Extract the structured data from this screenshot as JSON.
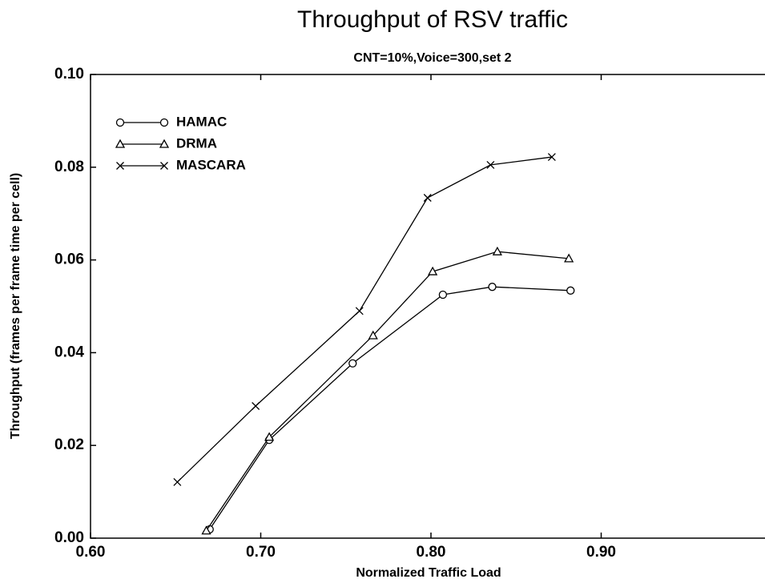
{
  "chart_data": {
    "type": "line",
    "title": "Throughput of RSV traffic",
    "subtitle": "CNT=10%,Voice=300,set 2",
    "x_label": "Normalized Traffic Load",
    "y_label": "Throughput (frames per frame time per cell)",
    "xlim": [
      0.6,
      1.0
    ],
    "ylim": [
      0.0,
      0.1
    ],
    "xticks": [
      {
        "value": 0.6,
        "label": "0.60"
      },
      {
        "value": 0.7,
        "label": "0.70"
      },
      {
        "value": 0.8,
        "label": "0.80"
      },
      {
        "value": 0.9,
        "label": "0.90"
      }
    ],
    "yticks": [
      {
        "value": 0.0,
        "label": "0.00"
      },
      {
        "value": 0.02,
        "label": "0.02"
      },
      {
        "value": 0.04,
        "label": "0.04"
      },
      {
        "value": 0.06,
        "label": "0.06"
      },
      {
        "value": 0.08,
        "label": "0.08"
      },
      {
        "value": 0.1,
        "label": "0.10"
      }
    ],
    "grid": false,
    "legend": "upper left",
    "series": [
      {
        "name": "HAMAC",
        "color": "#000000",
        "marker": "circle",
        "x": [
          0.67,
          0.705,
          0.754,
          0.807,
          0.836,
          0.882
        ],
        "values": [
          0.0019,
          0.0212,
          0.0377,
          0.0525,
          0.0542,
          0.0534
        ]
      },
      {
        "name": "DRMA",
        "color": "#000000",
        "marker": "triangle",
        "x": [
          0.668,
          0.705,
          0.766,
          0.801,
          0.839,
          0.881
        ],
        "values": [
          0.0016,
          0.0218,
          0.0437,
          0.0575,
          0.0618,
          0.0603
        ]
      },
      {
        "name": "MASCARA",
        "color": "#000000",
        "marker": "x",
        "x": [
          0.651,
          0.697,
          0.758,
          0.798,
          0.835,
          0.871
        ],
        "values": [
          0.0121,
          0.0285,
          0.049,
          0.0734,
          0.0805,
          0.0822
        ]
      }
    ]
  }
}
